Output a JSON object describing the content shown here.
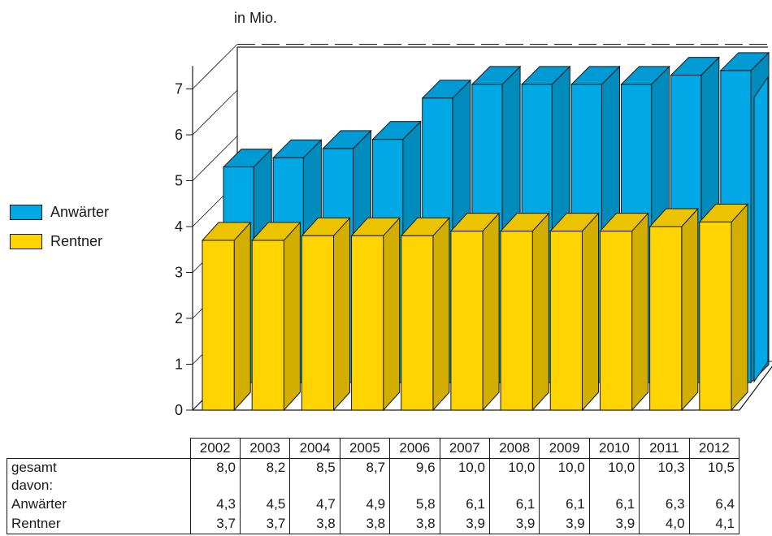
{
  "unit_label": "in Mio.",
  "colors": {
    "anwaerter": "#00a9e6",
    "rentner": "#ffd400"
  },
  "legend": {
    "anwaerter": "Anwärter",
    "rentner": "Rentner"
  },
  "table": {
    "row_gesamt": "gesamt",
    "row_davon": "davon:",
    "row_anwaerter": "Anwärter",
    "row_rentner": "Rentner"
  },
  "chart_data": {
    "type": "bar",
    "title": "",
    "unit": "in Mio.",
    "categories": [
      "2002",
      "2003",
      "2004",
      "2005",
      "2006",
      "2007",
      "2008",
      "2009",
      "2010",
      "2011",
      "2012"
    ],
    "series": [
      {
        "name": "Anwärter",
        "values": [
          4.3,
          4.5,
          4.7,
          4.9,
          5.8,
          6.1,
          6.1,
          6.1,
          6.1,
          6.3,
          6.4
        ],
        "labels": [
          "4,3",
          "4,5",
          "4,7",
          "4,9",
          "5,8",
          "6,1",
          "6,1",
          "6,1",
          "6,1",
          "6,3",
          "6,4"
        ]
      },
      {
        "name": "Rentner",
        "values": [
          3.7,
          3.7,
          3.8,
          3.8,
          3.8,
          3.9,
          3.9,
          3.9,
          3.9,
          4.0,
          4.1
        ],
        "labels": [
          "3,7",
          "3,7",
          "3,8",
          "3,8",
          "3,8",
          "3,9",
          "3,9",
          "3,9",
          "3,9",
          "4,0",
          "4,1"
        ]
      }
    ],
    "gesamt_labels": [
      "8,0",
      "8,2",
      "8,5",
      "8,7",
      "9,6",
      "10,0",
      "10,0",
      "10,0",
      "10,0",
      "10,3",
      "10,5"
    ],
    "yticks": [
      "0",
      "1",
      "2",
      "3",
      "4",
      "5",
      "6",
      "7"
    ],
    "ylim": [
      0,
      7.5
    ],
    "grid": "dashed at 7 only",
    "legend_position": "left"
  }
}
